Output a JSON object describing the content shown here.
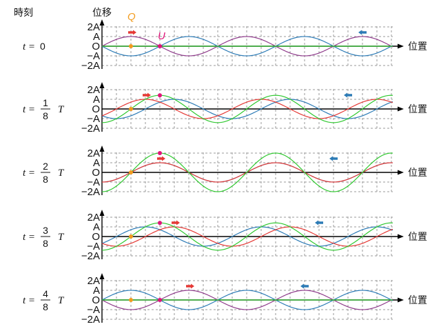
{
  "header": {
    "time_label": "時刻",
    "displacement_label": "位移"
  },
  "axis": {
    "position_label": "位置",
    "ticks": [
      "2A",
      "A",
      "O",
      "−A",
      "−2A"
    ]
  },
  "points": {
    "Q_label": "Q",
    "U_label": "U"
  },
  "colors": {
    "incident": "#e53935",
    "reflected": "#2c7bb6",
    "composite": "#2ec82e",
    "Q": "#f29b1d",
    "U": "#e0157a",
    "axis": "#000000",
    "grid": "#9a9a9a"
  },
  "panels": [
    {
      "t_prefix": "t = ",
      "t_value": "0",
      "frac_num": "",
      "frac_den": "",
      "t_unit": "",
      "fraction": 0
    },
    {
      "t_prefix": "t = ",
      "t_value": "",
      "frac_num": "1",
      "frac_den": "8",
      "t_unit": "T",
      "fraction": 0.125
    },
    {
      "t_prefix": "t = ",
      "t_value": "",
      "frac_num": "2",
      "frac_den": "8",
      "t_unit": "T",
      "fraction": 0.25
    },
    {
      "t_prefix": "t = ",
      "t_value": "",
      "frac_num": "3",
      "frac_den": "8",
      "t_unit": "T",
      "fraction": 0.375
    },
    {
      "t_prefix": "t = ",
      "t_value": "",
      "frac_num": "4",
      "frac_den": "8",
      "t_unit": "T",
      "fraction": 0.5
    }
  ]
}
